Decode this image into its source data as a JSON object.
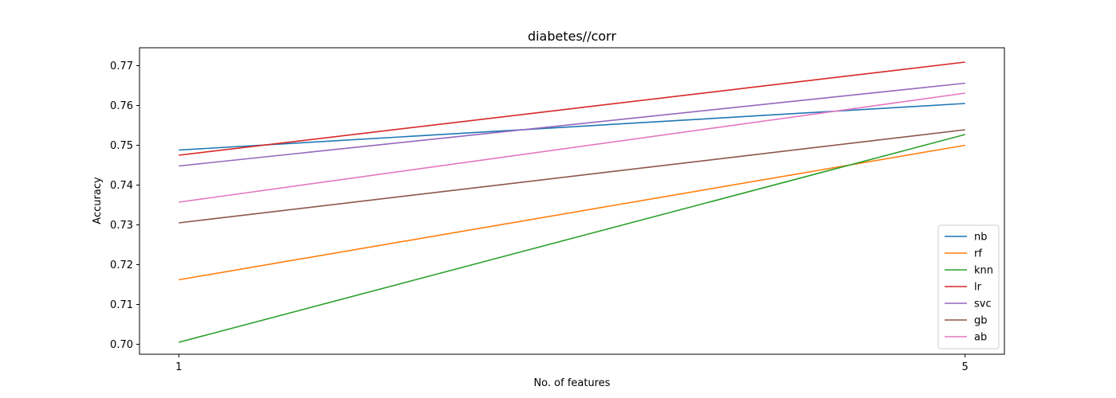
{
  "chart_data": {
    "type": "line",
    "title": "diabetes//corr",
    "xlabel": "No. of features",
    "ylabel": "Accuracy",
    "x": [
      1,
      5
    ],
    "xticks": [
      "1",
      "5"
    ],
    "xlim": [
      0.8,
      5.2
    ],
    "ylim": [
      0.6975,
      0.7745
    ],
    "yticks": [
      "0.70",
      "0.71",
      "0.72",
      "0.73",
      "0.74",
      "0.75",
      "0.76",
      "0.77"
    ],
    "grid": false,
    "legend_position": "lower-right",
    "series": [
      {
        "name": "nb",
        "values": [
          0.7488,
          0.7605
        ],
        "color": "#1f77b4"
      },
      {
        "name": "rf",
        "values": [
          0.7162,
          0.75
        ],
        "color": "#ff7f0e"
      },
      {
        "name": "knn",
        "values": [
          0.7005,
          0.7527
        ],
        "color": "#2ca02c"
      },
      {
        "name": "lr",
        "values": [
          0.7475,
          0.7709
        ],
        "color": "#d62728"
      },
      {
        "name": "svc",
        "values": [
          0.7448,
          0.7656
        ],
        "color": "#9467bd"
      },
      {
        "name": "gb",
        "values": [
          0.7305,
          0.7539
        ],
        "color": "#8c564b"
      },
      {
        "name": "ab",
        "values": [
          0.7357,
          0.7631
        ],
        "color": "#e377c2"
      }
    ]
  }
}
